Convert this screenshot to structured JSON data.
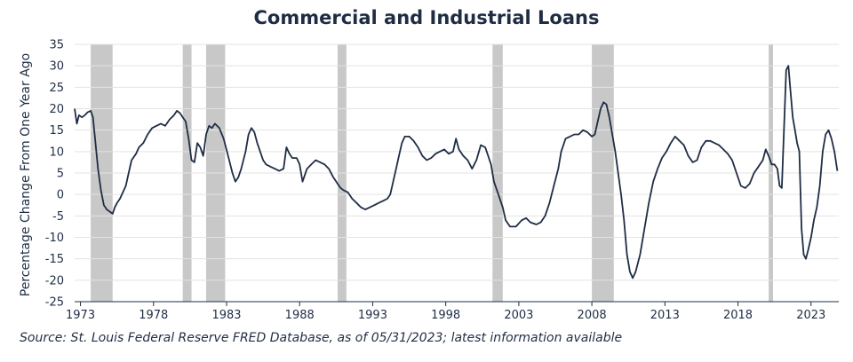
{
  "chart_data": {
    "type": "line",
    "title": "Commercial and Industrial Loans",
    "ylabel": "Percentage Change From One Year Ago",
    "xlabel": "",
    "xlim": [
      1972.6,
      2023.45
    ],
    "ylim": [
      -25,
      35
    ],
    "x_ticks": [
      1973,
      1978,
      1983,
      1988,
      1993,
      1998,
      2003,
      2008,
      2013,
      2018,
      2023
    ],
    "x_tick_labels": [
      "1973",
      "1978",
      "1983",
      "1988",
      "1993",
      "1998",
      "2003",
      "2008",
      "2013",
      "2018",
      "2023"
    ],
    "y_ticks": [
      -25,
      -20,
      -15,
      -10,
      -5,
      0,
      5,
      10,
      15,
      20,
      25,
      30,
      35
    ],
    "y_tick_labels": [
      "-25",
      "-20",
      "-15",
      "-10",
      "-5",
      "0",
      "5",
      "10",
      "15",
      "20",
      "25",
      "30",
      "35"
    ],
    "grid": "horizontal",
    "line_color": "#1f2d44",
    "recession_color": "#c8c8c8",
    "recessions": [
      [
        1973.7,
        1975.2
      ],
      [
        1980.0,
        1980.6
      ],
      [
        1981.6,
        1982.9
      ],
      [
        1990.6,
        1991.2
      ],
      [
        2001.2,
        2001.9
      ],
      [
        2008.0,
        2009.5
      ],
      [
        2020.1,
        2020.4
      ]
    ],
    "series": [
      {
        "name": "",
        "points": [
          [
            1972.6,
            20
          ],
          [
            1972.75,
            16.5
          ],
          [
            1972.9,
            18.5
          ],
          [
            1973.1,
            18
          ],
          [
            1973.3,
            18.5
          ],
          [
            1973.5,
            19.2
          ],
          [
            1973.7,
            19.5
          ],
          [
            1973.85,
            18
          ],
          [
            1974.0,
            13
          ],
          [
            1974.2,
            6
          ],
          [
            1974.4,
            1
          ],
          [
            1974.6,
            -2.5
          ],
          [
            1974.8,
            -3.5
          ],
          [
            1975.0,
            -4
          ],
          [
            1975.2,
            -4.5
          ],
          [
            1975.35,
            -3
          ],
          [
            1975.5,
            -2
          ],
          [
            1975.7,
            -1
          ],
          [
            1975.9,
            0.5
          ],
          [
            1976.1,
            2
          ],
          [
            1976.3,
            5
          ],
          [
            1976.5,
            8
          ],
          [
            1976.8,
            9.5
          ],
          [
            1977.0,
            11
          ],
          [
            1977.3,
            12
          ],
          [
            1977.6,
            14
          ],
          [
            1977.9,
            15.5
          ],
          [
            1978.2,
            16
          ],
          [
            1978.5,
            16.5
          ],
          [
            1978.8,
            16
          ],
          [
            1979.1,
            17.5
          ],
          [
            1979.4,
            18.5
          ],
          [
            1979.6,
            19.5
          ],
          [
            1979.8,
            19
          ],
          [
            1980.0,
            18
          ],
          [
            1980.2,
            17
          ],
          [
            1980.4,
            13
          ],
          [
            1980.6,
            8
          ],
          [
            1980.8,
            7.5
          ],
          [
            1981.0,
            12
          ],
          [
            1981.2,
            11
          ],
          [
            1981.4,
            9
          ],
          [
            1981.6,
            14
          ],
          [
            1981.8,
            16
          ],
          [
            1982.0,
            15.5
          ],
          [
            1982.2,
            16.5
          ],
          [
            1982.5,
            15.5
          ],
          [
            1982.8,
            13
          ],
          [
            1983.1,
            9
          ],
          [
            1983.4,
            5
          ],
          [
            1983.6,
            3
          ],
          [
            1983.8,
            4
          ],
          [
            1984.0,
            6
          ],
          [
            1984.3,
            10
          ],
          [
            1984.5,
            14
          ],
          [
            1984.7,
            15.5
          ],
          [
            1984.9,
            14.5
          ],
          [
            1985.1,
            12
          ],
          [
            1985.3,
            10
          ],
          [
            1985.5,
            8
          ],
          [
            1985.7,
            7
          ],
          [
            1986.0,
            6.5
          ],
          [
            1986.3,
            6
          ],
          [
            1986.6,
            5.5
          ],
          [
            1986.9,
            6
          ],
          [
            1987.1,
            11
          ],
          [
            1987.3,
            9.5
          ],
          [
            1987.5,
            8.5
          ],
          [
            1987.8,
            8.5
          ],
          [
            1988.0,
            7
          ],
          [
            1988.2,
            3
          ],
          [
            1988.5,
            6
          ],
          [
            1988.8,
            7
          ],
          [
            1989.1,
            8
          ],
          [
            1989.4,
            7.5
          ],
          [
            1989.7,
            7
          ],
          [
            1990.0,
            6
          ],
          [
            1990.3,
            4
          ],
          [
            1990.6,
            2.5
          ],
          [
            1990.8,
            1.5
          ],
          [
            1991.0,
            1
          ],
          [
            1991.3,
            0.5
          ],
          [
            1991.6,
            -1
          ],
          [
            1991.9,
            -2
          ],
          [
            1992.2,
            -3
          ],
          [
            1992.5,
            -3.5
          ],
          [
            1992.8,
            -3
          ],
          [
            1993.1,
            -2.5
          ],
          [
            1993.4,
            -2
          ],
          [
            1993.7,
            -1.5
          ],
          [
            1994.0,
            -1
          ],
          [
            1994.2,
            0
          ],
          [
            1994.4,
            3
          ],
          [
            1994.6,
            6
          ],
          [
            1994.8,
            9
          ],
          [
            1995.0,
            12
          ],
          [
            1995.2,
            13.5
          ],
          [
            1995.5,
            13.5
          ],
          [
            1995.8,
            12.5
          ],
          [
            1996.1,
            11
          ],
          [
            1996.4,
            9
          ],
          [
            1996.7,
            8
          ],
          [
            1997.0,
            8.5
          ],
          [
            1997.3,
            9.5
          ],
          [
            1997.6,
            10
          ],
          [
            1997.9,
            10.5
          ],
          [
            1998.2,
            9.5
          ],
          [
            1998.5,
            10
          ],
          [
            1998.7,
            13
          ],
          [
            1998.9,
            10.5
          ],
          [
            1999.2,
            9
          ],
          [
            1999.5,
            8
          ],
          [
            1999.8,
            6
          ],
          [
            2000.1,
            8
          ],
          [
            2000.4,
            11.5
          ],
          [
            2000.7,
            11
          ],
          [
            2000.9,
            9
          ],
          [
            2001.1,
            7
          ],
          [
            2001.3,
            3
          ],
          [
            2001.6,
            0
          ],
          [
            2001.9,
            -3
          ],
          [
            2002.1,
            -6
          ],
          [
            2002.4,
            -7.5
          ],
          [
            2002.8,
            -7.5
          ],
          [
            2003.2,
            -6
          ],
          [
            2003.5,
            -5.5
          ],
          [
            2003.8,
            -6.5
          ],
          [
            2004.2,
            -7
          ],
          [
            2004.5,
            -6.5
          ],
          [
            2004.8,
            -5
          ],
          [
            2005.1,
            -2
          ],
          [
            2005.4,
            2
          ],
          [
            2005.7,
            6
          ],
          [
            2005.9,
            10
          ],
          [
            2006.2,
            13
          ],
          [
            2006.5,
            13.5
          ],
          [
            2006.8,
            14
          ],
          [
            2007.1,
            14
          ],
          [
            2007.4,
            15
          ],
          [
            2007.7,
            14.5
          ],
          [
            2008.0,
            13.5
          ],
          [
            2008.2,
            14
          ],
          [
            2008.4,
            17
          ],
          [
            2008.6,
            20
          ],
          [
            2008.8,
            21.5
          ],
          [
            2009.0,
            21
          ],
          [
            2009.2,
            18
          ],
          [
            2009.4,
            14
          ],
          [
            2009.6,
            10
          ],
          [
            2009.8,
            5
          ],
          [
            2010.0,
            0
          ],
          [
            2010.2,
            -6
          ],
          [
            2010.4,
            -14
          ],
          [
            2010.6,
            -18
          ],
          [
            2010.8,
            -19.5
          ],
          [
            2011.0,
            -18
          ],
          [
            2011.3,
            -14
          ],
          [
            2011.6,
            -8
          ],
          [
            2011.9,
            -2
          ],
          [
            2012.2,
            3
          ],
          [
            2012.5,
            6
          ],
          [
            2012.8,
            8.5
          ],
          [
            2013.1,
            10
          ],
          [
            2013.4,
            12
          ],
          [
            2013.7,
            13.5
          ],
          [
            2014.0,
            12.5
          ],
          [
            2014.3,
            11.5
          ],
          [
            2014.6,
            9
          ],
          [
            2014.9,
            7.5
          ],
          [
            2015.2,
            8
          ],
          [
            2015.5,
            11
          ],
          [
            2015.8,
            12.5
          ],
          [
            2016.1,
            12.5
          ],
          [
            2016.4,
            12
          ],
          [
            2016.7,
            11.5
          ],
          [
            2017.0,
            10.5
          ],
          [
            2017.3,
            9.5
          ],
          [
            2017.6,
            8
          ],
          [
            2017.9,
            5
          ],
          [
            2018.2,
            2
          ],
          [
            2018.5,
            1.5
          ],
          [
            2018.8,
            2.5
          ],
          [
            2019.1,
            5
          ],
          [
            2019.4,
            6.5
          ],
          [
            2019.7,
            8
          ],
          [
            2019.9,
            10.5
          ],
          [
            2020.1,
            9
          ],
          [
            2020.3,
            7
          ],
          [
            2020.5,
            7
          ],
          [
            2020.7,
            6
          ],
          [
            2020.85,
            2
          ],
          [
            2021.0,
            1.5
          ],
          [
            2021.15,
            15
          ],
          [
            2021.3,
            29
          ],
          [
            2021.45,
            30
          ],
          [
            2021.6,
            24
          ],
          [
            2021.75,
            18
          ],
          [
            2021.9,
            15
          ],
          [
            2022.05,
            12
          ],
          [
            2022.2,
            10
          ],
          [
            2022.35,
            -8
          ],
          [
            2022.5,
            -14
          ],
          [
            2022.65,
            -15
          ],
          [
            2022.8,
            -13
          ],
          [
            2023.0,
            -10
          ],
          [
            2023.2,
            -6
          ],
          [
            2023.4,
            -3
          ],
          [
            2023.6,
            2
          ],
          [
            2023.8,
            10
          ],
          [
            2024.0,
            14
          ],
          [
            2024.2,
            15
          ],
          [
            2024.4,
            13
          ],
          [
            2024.6,
            10
          ],
          [
            2024.8,
            5.5
          ]
        ]
      }
    ]
  },
  "source_note": "Source: St. Louis Federal Reserve FRED Database, as of 05/31/2023; latest information available"
}
